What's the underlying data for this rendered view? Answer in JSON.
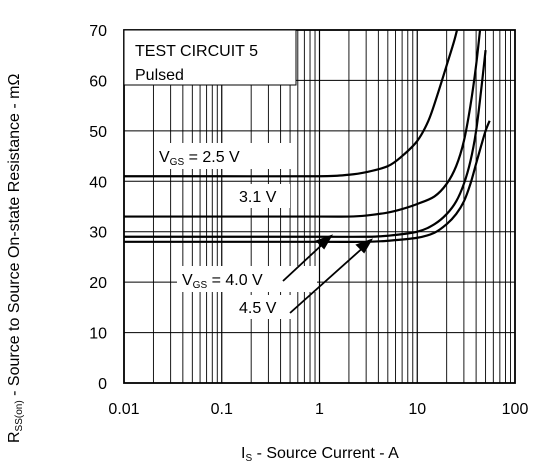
{
  "chart_data": {
    "type": "line",
    "xscale": "log",
    "xlim": [
      0.01,
      100
    ],
    "ylim": [
      0,
      70
    ],
    "grid": true,
    "legend": "none",
    "xlabel": {
      "main": "I",
      "sub": "S",
      "rest": " - Source Current - A"
    },
    "ylabel": {
      "main": "R",
      "sub": "SS(on)",
      "rest": " - Source to Source On-state Resistance - mΩ"
    },
    "xticks": [
      {
        "value": 0.01,
        "label": "0.01"
      },
      {
        "value": 0.1,
        "label": "0.1"
      },
      {
        "value": 1,
        "label": "1"
      },
      {
        "value": 10,
        "label": "10"
      },
      {
        "value": 100,
        "label": "100"
      }
    ],
    "yticks": [
      {
        "value": 0,
        "label": "0"
      },
      {
        "value": 10,
        "label": "10"
      },
      {
        "value": 20,
        "label": "20"
      },
      {
        "value": 30,
        "label": "30"
      },
      {
        "value": 40,
        "label": "40"
      },
      {
        "value": 50,
        "label": "50"
      },
      {
        "value": 60,
        "label": "60"
      },
      {
        "value": 70,
        "label": "70"
      }
    ],
    "box_text": [
      "TEST CIRCUIT 5",
      "Pulsed"
    ],
    "series": [
      {
        "x": [
          0.01,
          0.1,
          1,
          2,
          3,
          5,
          7,
          10,
          13,
          16,
          20,
          24,
          27
        ],
        "y": [
          41,
          41,
          41,
          41.3,
          41.8,
          43,
          45,
          48,
          52,
          57,
          63,
          68,
          72
        ]
      },
      {
        "x": [
          0.01,
          0.1,
          1,
          2,
          3,
          5,
          7,
          10,
          15,
          20,
          25,
          30,
          35,
          40,
          45
        ],
        "y": [
          33,
          33,
          33,
          33,
          33.2,
          33.8,
          34.5,
          35.5,
          37,
          39.5,
          43,
          48,
          55,
          63,
          72
        ]
      },
      {
        "x": [
          0.01,
          0.1,
          1,
          3,
          5,
          10,
          15,
          20,
          25,
          30,
          35,
          40,
          45,
          50
        ],
        "y": [
          29,
          29,
          29,
          29,
          29.2,
          30,
          31.5,
          33.5,
          36,
          39.5,
          44,
          50,
          58,
          66
        ]
      },
      {
        "x": [
          0.01,
          0.1,
          1,
          3,
          5,
          10,
          15,
          20,
          25,
          30,
          35,
          40,
          45,
          50,
          55
        ],
        "y": [
          28,
          28,
          28,
          28,
          28.2,
          28.8,
          29.8,
          31.5,
          33.5,
          36,
          39.5,
          43.5,
          47,
          50,
          52
        ]
      }
    ],
    "annotations": [
      {
        "main": "V",
        "sub": "GS",
        "rest": " = 2.5 V"
      },
      {
        "main": "",
        "sub": "",
        "rest": "3.1 V"
      },
      {
        "main": "V",
        "sub": "GS",
        "rest": " = 4.0 V"
      },
      {
        "main": "",
        "sub": "",
        "rest": "4.5 V"
      }
    ]
  }
}
